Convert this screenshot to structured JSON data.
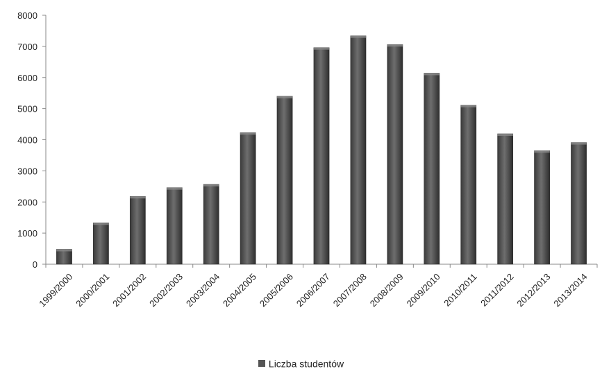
{
  "chart_data": {
    "type": "bar",
    "categories": [
      "1999/2000",
      "2000/2001",
      "2001/2002",
      "2002/2003",
      "2003/2004",
      "2004/2005",
      "2005/2006",
      "2006/2007",
      "2007/2008",
      "2008/2009",
      "2009/2010",
      "2010/2011",
      "2011/2012",
      "2012/2013",
      "2013/2014"
    ],
    "series": [
      {
        "name": "Liczba studentów",
        "values": [
          480,
          1330,
          2180,
          2460,
          2570,
          4230,
          5400,
          6960,
          7340,
          7060,
          6140,
          5110,
          4190,
          3650,
          3910
        ],
        "color": "#4d4d4d"
      }
    ],
    "ylim": [
      0,
      8000
    ],
    "yticks": [
      0,
      1000,
      2000,
      3000,
      4000,
      5000,
      6000,
      7000,
      8000
    ],
    "grid": false,
    "legend_position": "bottom"
  }
}
